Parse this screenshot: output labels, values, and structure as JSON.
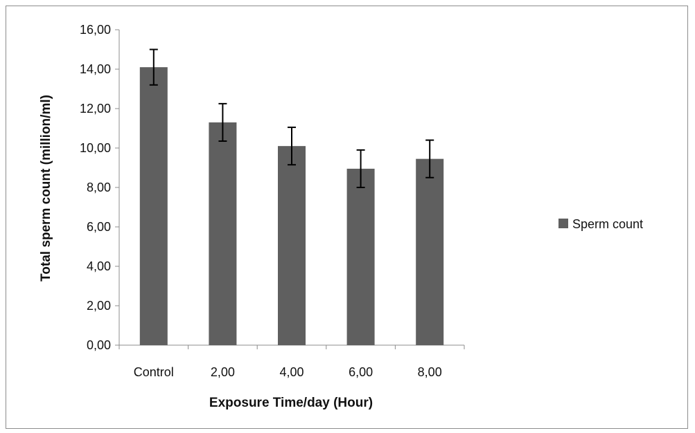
{
  "chart_data": {
    "type": "bar",
    "title": "",
    "xlabel": "Exposure Time/day (Hour)",
    "ylabel": "Total sperm count (million/ml)",
    "categories": [
      "Control",
      "2,00",
      "4,00",
      "6,00",
      "8,00"
    ],
    "series": [
      {
        "name": "Sperm count",
        "values": [
          14.1,
          11.3,
          10.1,
          8.95,
          9.45
        ],
        "error": [
          0.9,
          0.95,
          0.95,
          0.95,
          0.95
        ]
      }
    ],
    "ylim": [
      0,
      16
    ],
    "yticks": [
      "0,00",
      "2,00",
      "4,00",
      "6,00",
      "8,00",
      "10,00",
      "12,00",
      "14,00",
      "16,00"
    ],
    "grid": false,
    "legend_position": "right",
    "colors": {
      "bar": "#5f5f5f",
      "axis": "#8c8c8c",
      "error_bar": "#000000"
    }
  }
}
